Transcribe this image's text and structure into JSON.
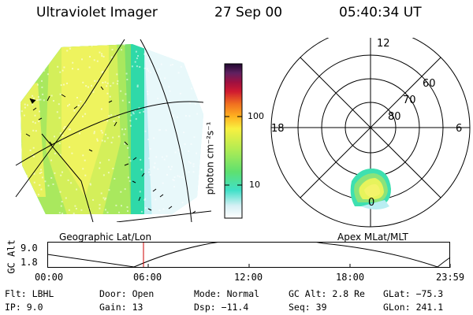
{
  "header": {
    "instrument": "Ultraviolet Imager",
    "date": "27 Sep 00",
    "time": "05:40:34 UT"
  },
  "colorbar": {
    "label": "photon cm⁻²s⁻¹",
    "ticks": [
      "100",
      "10"
    ]
  },
  "polar": {
    "mlt_labels": [
      "12",
      "18",
      "6",
      "0"
    ],
    "lat_labels": [
      "60",
      "70",
      "80"
    ]
  },
  "geo_title": "Geographic Lat/Lon",
  "apex_title": "Apex MLat/MLT",
  "orbit": {
    "ylabel": "GC Alt",
    "yticks": [
      "9.0",
      "1.8"
    ],
    "xticks": [
      "00:00",
      "06:00",
      "12:00",
      "18:00",
      "23:59"
    ]
  },
  "footer": {
    "row1": [
      {
        "key": "Flt:",
        "val": "LBHL"
      },
      {
        "key": "Door:",
        "val": "Open"
      },
      {
        "key": "Mode:",
        "val": "Normal"
      },
      {
        "key": "GC Alt:",
        "val": "2.8 Re"
      },
      {
        "key": "GLat:",
        "val": "−75.3"
      }
    ],
    "row2": [
      {
        "key": "IP:",
        "val": "9.0"
      },
      {
        "key": "Gain:",
        "val": "13"
      },
      {
        "key": "Dsp:",
        "val": "−11.4"
      },
      {
        "key": "Seq:",
        "val": "39"
      },
      {
        "key": "GLon:",
        "val": "241.1"
      }
    ]
  },
  "colors": {
    "bright": "#f2f25a",
    "mid": "#9be85a",
    "dim": "#3ee0a8",
    "faint": "#bff0f0",
    "marker": "#cc0000"
  }
}
